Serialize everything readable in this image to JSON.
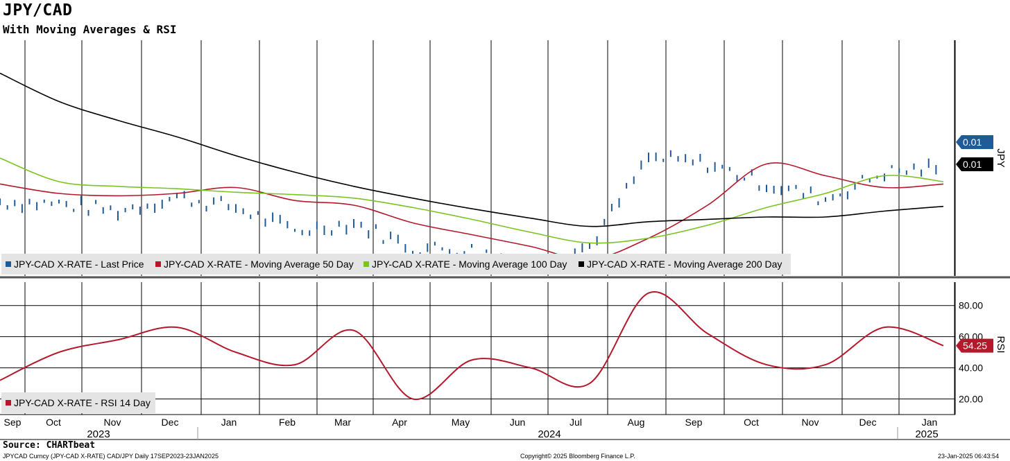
{
  "header": {
    "title": "JPY/CAD",
    "subtitle": "With Moving Averages & RSI"
  },
  "footer": {
    "source": "Source: CHARTbeat",
    "left_note": "JPYCAD Curncy (JPY-CAD X-RATE) CAD/JPY  Daily 17SEP2023-23JAN2025",
    "center_note": "Copyright© 2025 Bloomberg Finance L.P.",
    "right_note": "23-Jan-2025 06:43:54"
  },
  "colors": {
    "price": "#1f5a99",
    "ma50": "#b5182b",
    "ma100": "#7ac41f",
    "ma200": "#000000",
    "rsi": "#b5182b"
  },
  "chart_data": [
    {
      "type": "line",
      "panel": "price",
      "y_axis_label": "JPY",
      "grid": true,
      "legend_position": "bottom-left",
      "x": [
        "2023-09",
        "2023-10",
        "2023-11",
        "2023-12",
        "2024-01",
        "2024-02",
        "2024-03",
        "2024-04",
        "2024-05",
        "2024-06",
        "2024-07",
        "2024-08",
        "2024-09",
        "2024-10",
        "2024-11",
        "2024-12",
        "2025-01"
      ],
      "series": [
        {
          "name": "JPY-CAD X-RATE - Last Price",
          "values": [
            0.00923,
            0.00921,
            0.00915,
            0.00927,
            0.00918,
            0.00898,
            0.00905,
            0.00884,
            0.00882,
            0.00872,
            0.00885,
            0.0096,
            0.00955,
            0.00938,
            0.00925,
            0.00948,
            0.00952
          ]
        },
        {
          "name": "JPY-CAD X-RATE - Moving Average 50 Day",
          "values": [
            0.00938,
            0.0093,
            0.00928,
            0.0093,
            0.00935,
            0.00924,
            0.0092,
            0.00905,
            0.00895,
            0.00885,
            0.00874,
            0.00892,
            0.0092,
            0.00955,
            0.00945,
            0.00935,
            0.00938
          ]
        },
        {
          "name": "JPY-CAD X-RATE - Moving Average 100 Day",
          "values": [
            0.0096,
            0.0094,
            0.00936,
            0.00934,
            0.00931,
            0.00929,
            0.00926,
            0.00918,
            0.00908,
            0.00897,
            0.00888,
            0.00892,
            0.00903,
            0.00918,
            0.0093,
            0.00945,
            0.0094
          ]
        },
        {
          "name": "JPY-CAD X-RATE - Moving Average 200 Day",
          "values": [
            0.01032,
            0.01008,
            0.00992,
            0.00978,
            0.00962,
            0.00948,
            0.00936,
            0.00926,
            0.00917,
            0.00909,
            0.00902,
            0.00906,
            0.00908,
            0.0091,
            0.0091,
            0.00915,
            0.00919
          ]
        }
      ],
      "last_value_labels": [
        {
          "series": "JPY-CAD X-RATE - Last Price",
          "text": "0.01"
        },
        {
          "series": "JPY-CAD X-RATE - Moving Average 200 Day",
          "text": "0.01"
        }
      ]
    },
    {
      "type": "line",
      "panel": "rsi",
      "y_axis_label": "RSI",
      "ylim": [
        10,
        95
      ],
      "y_ticks": [
        "80.00",
        "60.00",
        "40.00",
        "20.00"
      ],
      "grid": true,
      "legend_position": "bottom-left",
      "x": [
        "2023-09",
        "2023-10",
        "2023-11",
        "2023-12",
        "2024-01",
        "2024-02",
        "2024-03",
        "2024-04",
        "2024-05",
        "2024-06",
        "2024-07",
        "2024-08",
        "2024-09",
        "2024-10",
        "2024-11",
        "2024-12",
        "2025-01"
      ],
      "series": [
        {
          "name": "JPY-CAD X-RATE - RSI 14 Day",
          "values": [
            32,
            50,
            58,
            66,
            50,
            42,
            64,
            20,
            45,
            40,
            30,
            88,
            62,
            42,
            42,
            66,
            54.25
          ]
        }
      ],
      "last_value_labels": [
        {
          "series": "JPY-CAD X-RATE - RSI 14 Day",
          "text": "54.25"
        }
      ]
    }
  ],
  "x_axis": {
    "months": [
      "Sep",
      "Oct",
      "Nov",
      "Dec",
      "Jan",
      "Feb",
      "Mar",
      "Apr",
      "May",
      "Jun",
      "Jul",
      "Aug",
      "Sep",
      "Oct",
      "Nov",
      "Dec",
      "Jan"
    ],
    "years": [
      "2023",
      "2024",
      "2025"
    ]
  }
}
